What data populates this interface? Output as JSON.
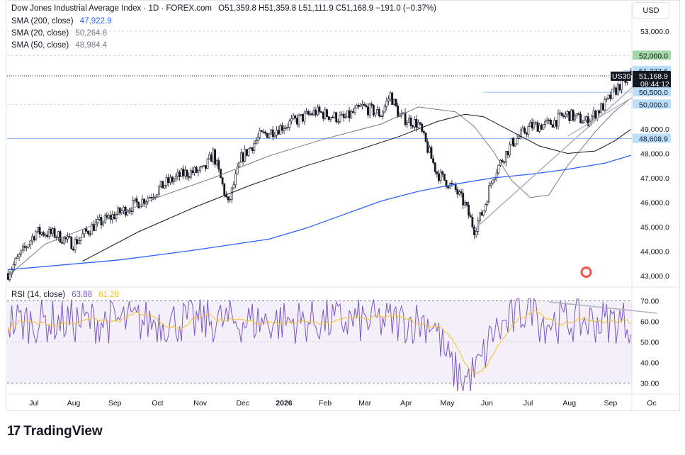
{
  "header": {
    "symbol": "Dow Jones Industrial Average Index · 1D · FOREX.com",
    "ohlc": "O51,359.8  H51,359.8  L51,111.9  C51,168.9  −191.0 (−0.37%)",
    "currency": "USD"
  },
  "indicators": [
    {
      "label": "SMA (200, close)",
      "value": "47,922.9",
      "color": "#2962ff"
    },
    {
      "label": "SMA (20, close)",
      "value": "50,264.6",
      "color": "#787b86"
    },
    {
      "label": "SMA (50, close)",
      "value": "48,984.4",
      "color": "#787b86"
    }
  ],
  "rsi_legend": {
    "label": "RSI (14, close)",
    "value": "63.88",
    "value_color": "#7e57c2",
    "sma": "61.28",
    "sma_color": "#f7c12d"
  },
  "brand": "TradingView",
  "colors": {
    "up": "#ffffff",
    "down": "#131722",
    "sma200": "#2962ff",
    "sma20": "#787b86",
    "sma50": "#131722",
    "rsi": "#7e57c2",
    "rsi_sma": "#f7c12d",
    "level": "#90bff9",
    "trend": "#b2b5be"
  },
  "chart_data": {
    "type": "candlestick",
    "x_ticks": [
      "Jul",
      "Aug",
      "Sep",
      "Oct",
      "Nov",
      "Dec",
      "2026",
      "Feb",
      "Mar",
      "Apr",
      "May",
      "Jun",
      "Jul",
      "Aug",
      "Sep",
      "Oc"
    ],
    "y_ticks": [
      "53,000.0",
      "49,000.0",
      "48,000.0",
      "47,000.0",
      "46,000.0",
      "45,000.0",
      "44,000.0",
      "43,000.0"
    ],
    "price_labels": [
      {
        "text": "52,000.0",
        "value": 52000,
        "bg": "#a5d6a7",
        "fg": "#131722"
      },
      {
        "text": "51,377.6",
        "value": 51377.6,
        "bg": "#bbdefb",
        "fg": "#131722"
      },
      {
        "text": "51,168.9",
        "value": 51168.9,
        "bg": "#131722",
        "fg": "#ffffff",
        "sub": "08:44:12",
        "tag": "US30"
      },
      {
        "text": "50,500.0",
        "value": 50500,
        "bg": "#bbdefb",
        "fg": "#131722"
      },
      {
        "text": "50,000.0",
        "value": 50000,
        "bg": "#bbdefb",
        "fg": "#131722"
      },
      {
        "text": "48,608.9",
        "value": 48608.9,
        "bg": "#bbdefb",
        "fg": "#131722"
      }
    ],
    "horizontal_levels": [
      51377.6,
      50500,
      48608.9
    ],
    "close_line": 51168.9,
    "ylim": [
      42600,
      53400
    ],
    "rsi": {
      "ylim": [
        25,
        75
      ],
      "ticks": [
        "70.00",
        "60.00",
        "50.00",
        "40.00",
        "30.00"
      ],
      "bands": [
        30,
        70
      ]
    },
    "sma200_points": [
      [
        0,
        43250
      ],
      [
        60,
        43650
      ],
      [
        100,
        44050
      ],
      [
        140,
        44500
      ],
      [
        160,
        44950
      ],
      [
        180,
        45500
      ],
      [
        200,
        46050
      ],
      [
        220,
        46450
      ],
      [
        240,
        46750
      ],
      [
        260,
        47000
      ],
      [
        280,
        47150
      ],
      [
        300,
        47350
      ],
      [
        320,
        47600
      ],
      [
        334,
        47922.9
      ]
    ],
    "sma50_points": [
      [
        40,
        43600
      ],
      [
        70,
        44800
      ],
      [
        100,
        45800
      ],
      [
        130,
        46700
      ],
      [
        160,
        47500
      ],
      [
        190,
        48200
      ],
      [
        210,
        48700
      ],
      [
        230,
        49300
      ],
      [
        245,
        49600
      ],
      [
        255,
        49500
      ],
      [
        270,
        48900
      ],
      [
        285,
        48300
      ],
      [
        300,
        48000
      ],
      [
        315,
        48100
      ],
      [
        325,
        48500
      ],
      [
        334,
        48984.4
      ]
    ],
    "sma20_points": [
      [
        0,
        43000
      ],
      [
        20,
        44300
      ],
      [
        50,
        45200
      ],
      [
        80,
        46200
      ],
      [
        110,
        47000
      ],
      [
        140,
        47900
      ],
      [
        170,
        48600
      ],
      [
        200,
        49200
      ],
      [
        220,
        49900
      ],
      [
        240,
        49700
      ],
      [
        250,
        49100
      ],
      [
        260,
        48100
      ],
      [
        270,
        46900
      ],
      [
        280,
        46200
      ],
      [
        290,
        46300
      ],
      [
        300,
        47500
      ],
      [
        315,
        48900
      ],
      [
        325,
        49700
      ],
      [
        334,
        50264.6
      ]
    ]
  }
}
